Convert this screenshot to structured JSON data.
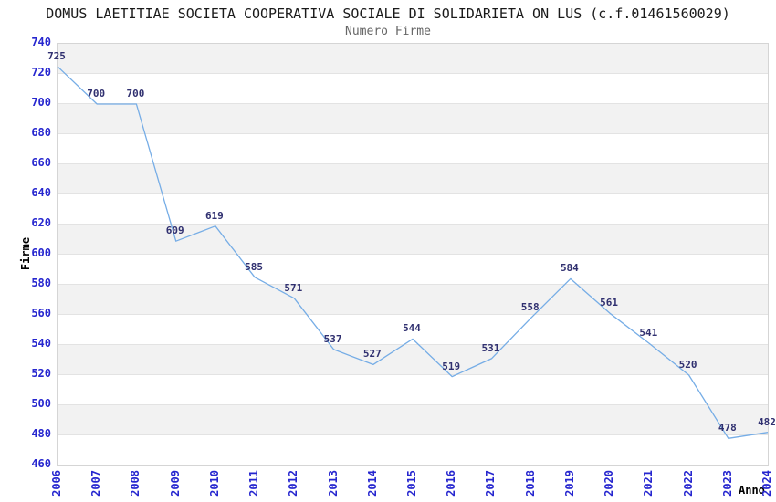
{
  "chart_data": {
    "type": "line",
    "title": "DOMUS LAETITIAE SOCIETA COOPERATIVA SOCIALE DI SOLIDARIETA ON LUS (c.f.01461560029)",
    "subtitle": "Numero Firme",
    "xlabel": "Anno",
    "ylabel": "Firme",
    "x": [
      2006,
      2007,
      2008,
      2009,
      2010,
      2011,
      2012,
      2013,
      2014,
      2015,
      2016,
      2017,
      2018,
      2019,
      2020,
      2021,
      2022,
      2023,
      2024
    ],
    "series": [
      {
        "name": "Numero Firme",
        "values": [
          725,
          700,
          700,
          609,
          619,
          585,
          571,
          537,
          527,
          544,
          519,
          531,
          558,
          584,
          561,
          541,
          520,
          478,
          482
        ]
      }
    ],
    "ylim": [
      460,
      740
    ],
    "ytick_step": 20,
    "grid": "horizontal-alternating-bands",
    "legend": "none",
    "show_point_labels": true,
    "colors": {
      "line": "#76ade6",
      "data_label": "#303070",
      "tick_label": "#2626cf",
      "band": "#f2f2f2",
      "grid_line": "#e3e3e3",
      "plot_border": "#d5d5d5",
      "title": "#1a1a1a",
      "subtitle": "#666666",
      "axis_title": "#000000",
      "background": "#ffffff"
    }
  }
}
